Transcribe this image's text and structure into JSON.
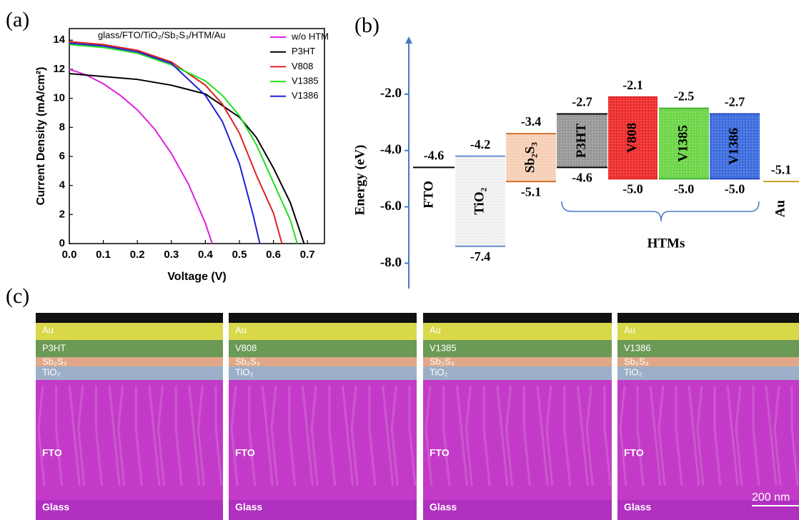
{
  "panel_labels": [
    "(a)",
    "(b)",
    "(c)"
  ],
  "chart_data": [
    {
      "type": "line",
      "annotation": "glass/FTO/TiO₂/Sb₂S₃/HTM/Au",
      "x_label": "Voltage (V)",
      "y_label": "Current Density (mA/cm²)",
      "xlim": [
        0,
        0.75
      ],
      "ylim": [
        0,
        14.8
      ],
      "xticks": [
        {
          "value": 0,
          "label": "0.0"
        },
        0.1,
        0.2,
        0.3,
        0.4,
        0.5,
        0.6,
        0.7
      ],
      "yticks": [
        0,
        2,
        4,
        6,
        8,
        10,
        12,
        14
      ],
      "legend": "upper right",
      "series": [
        {
          "name": "w/o HTM",
          "color": "#e020e0",
          "x": [
            0,
            0.05,
            0.1,
            0.15,
            0.2,
            0.25,
            0.3,
            0.35,
            0.4,
            0.42
          ],
          "values": [
            12.0,
            11.6,
            11.0,
            10.2,
            9.2,
            7.9,
            6.2,
            4.1,
            1.4,
            0
          ]
        },
        {
          "name": "P3HT",
          "color": "#000000",
          "x": [
            0,
            0.1,
            0.2,
            0.3,
            0.4,
            0.45,
            0.5,
            0.55,
            0.6,
            0.65,
            0.69
          ],
          "values": [
            11.7,
            11.5,
            11.3,
            10.9,
            10.3,
            9.5,
            8.7,
            7.3,
            5.2,
            2.8,
            0
          ]
        },
        {
          "name": "V808",
          "color": "#e02020",
          "x": [
            0,
            0.1,
            0.2,
            0.3,
            0.4,
            0.45,
            0.5,
            0.55,
            0.6,
            0.625
          ],
          "values": [
            13.9,
            13.7,
            13.3,
            12.5,
            10.9,
            9.6,
            7.6,
            4.7,
            2.1,
            0
          ]
        },
        {
          "name": "V1385",
          "color": "#20e020",
          "x": [
            0,
            0.1,
            0.2,
            0.3,
            0.4,
            0.45,
            0.5,
            0.55,
            0.6,
            0.65,
            0.67
          ],
          "values": [
            13.7,
            13.5,
            13.1,
            12.3,
            11.2,
            10.2,
            8.8,
            6.8,
            4.2,
            1.6,
            0
          ]
        },
        {
          "name": "V1386",
          "color": "#2020d0",
          "x": [
            0,
            0.1,
            0.2,
            0.3,
            0.4,
            0.45,
            0.5,
            0.54,
            0.56
          ],
          "values": [
            13.8,
            13.6,
            13.2,
            12.4,
            10.2,
            8.4,
            5.5,
            2.0,
            0
          ]
        }
      ]
    },
    {
      "type": "energy_levels",
      "y_label": "Energy (eV)",
      "ylim": [
        -8.9,
        0
      ],
      "yticks": [
        {
          "value": -2,
          "label": "-2.0"
        },
        {
          "value": -4,
          "label": "-4.0"
        },
        {
          "value": -6,
          "label": "-6.0"
        },
        {
          "value": -8,
          "label": "-8.0"
        }
      ],
      "group_label": "HTMs",
      "levels": [
        {
          "name": "FTO",
          "color": "#000000",
          "values": [
            -4.6
          ]
        },
        {
          "name": "TiO₂",
          "color": "#6f8fd6",
          "fill": "#f2f2f2",
          "values": [
            -4.2,
            -7.4
          ]
        },
        {
          "name": "Sb₂S₃",
          "color": "#d0702a",
          "fill": "#f8d2b8",
          "values": [
            -3.4,
            -5.1
          ]
        },
        {
          "name": "P3HT",
          "color": "#000000",
          "fill": "#9a9a9a",
          "values": [
            -2.7,
            -4.6
          ]
        },
        {
          "name": "V808",
          "color": "#e02020",
          "fill": "#f03030",
          "values": [
            -2.1,
            -5.0
          ],
          "value_labels": [
            "-2.1",
            "-5.0"
          ]
        },
        {
          "name": "V1385",
          "color": "#40b030",
          "fill": "#6fd84a",
          "values": [
            -2.5,
            -5.0
          ],
          "value_labels": [
            "-2.5",
            "-5.0"
          ]
        },
        {
          "name": "V1386",
          "color": "#2040c0",
          "fill": "#3f6fe0",
          "values": [
            -2.7,
            -5.0
          ],
          "value_labels": [
            "-2.7",
            "-5.0"
          ]
        },
        {
          "name": "Au",
          "color": "#c8a020",
          "values": [
            -5.1
          ]
        }
      ]
    }
  ],
  "sem_images": [
    {
      "layers": [
        "Au",
        "P3HT",
        "Sb₂S₃",
        "TiO₂",
        "FTO",
        "Glass"
      ]
    },
    {
      "layers": [
        "Au",
        "V808",
        "Sb₂S₃",
        "TiO₂",
        "FTO",
        "Glass"
      ]
    },
    {
      "layers": [
        "Au",
        "V1385",
        "Sb₂S₃",
        "TiO₂",
        "FTO",
        "Glass"
      ]
    },
    {
      "layers": [
        "Au",
        "V1386",
        "Sb₂S₃",
        "TiO₂",
        "FTO",
        "Glass"
      ]
    }
  ],
  "scale_bar": "200 nm"
}
